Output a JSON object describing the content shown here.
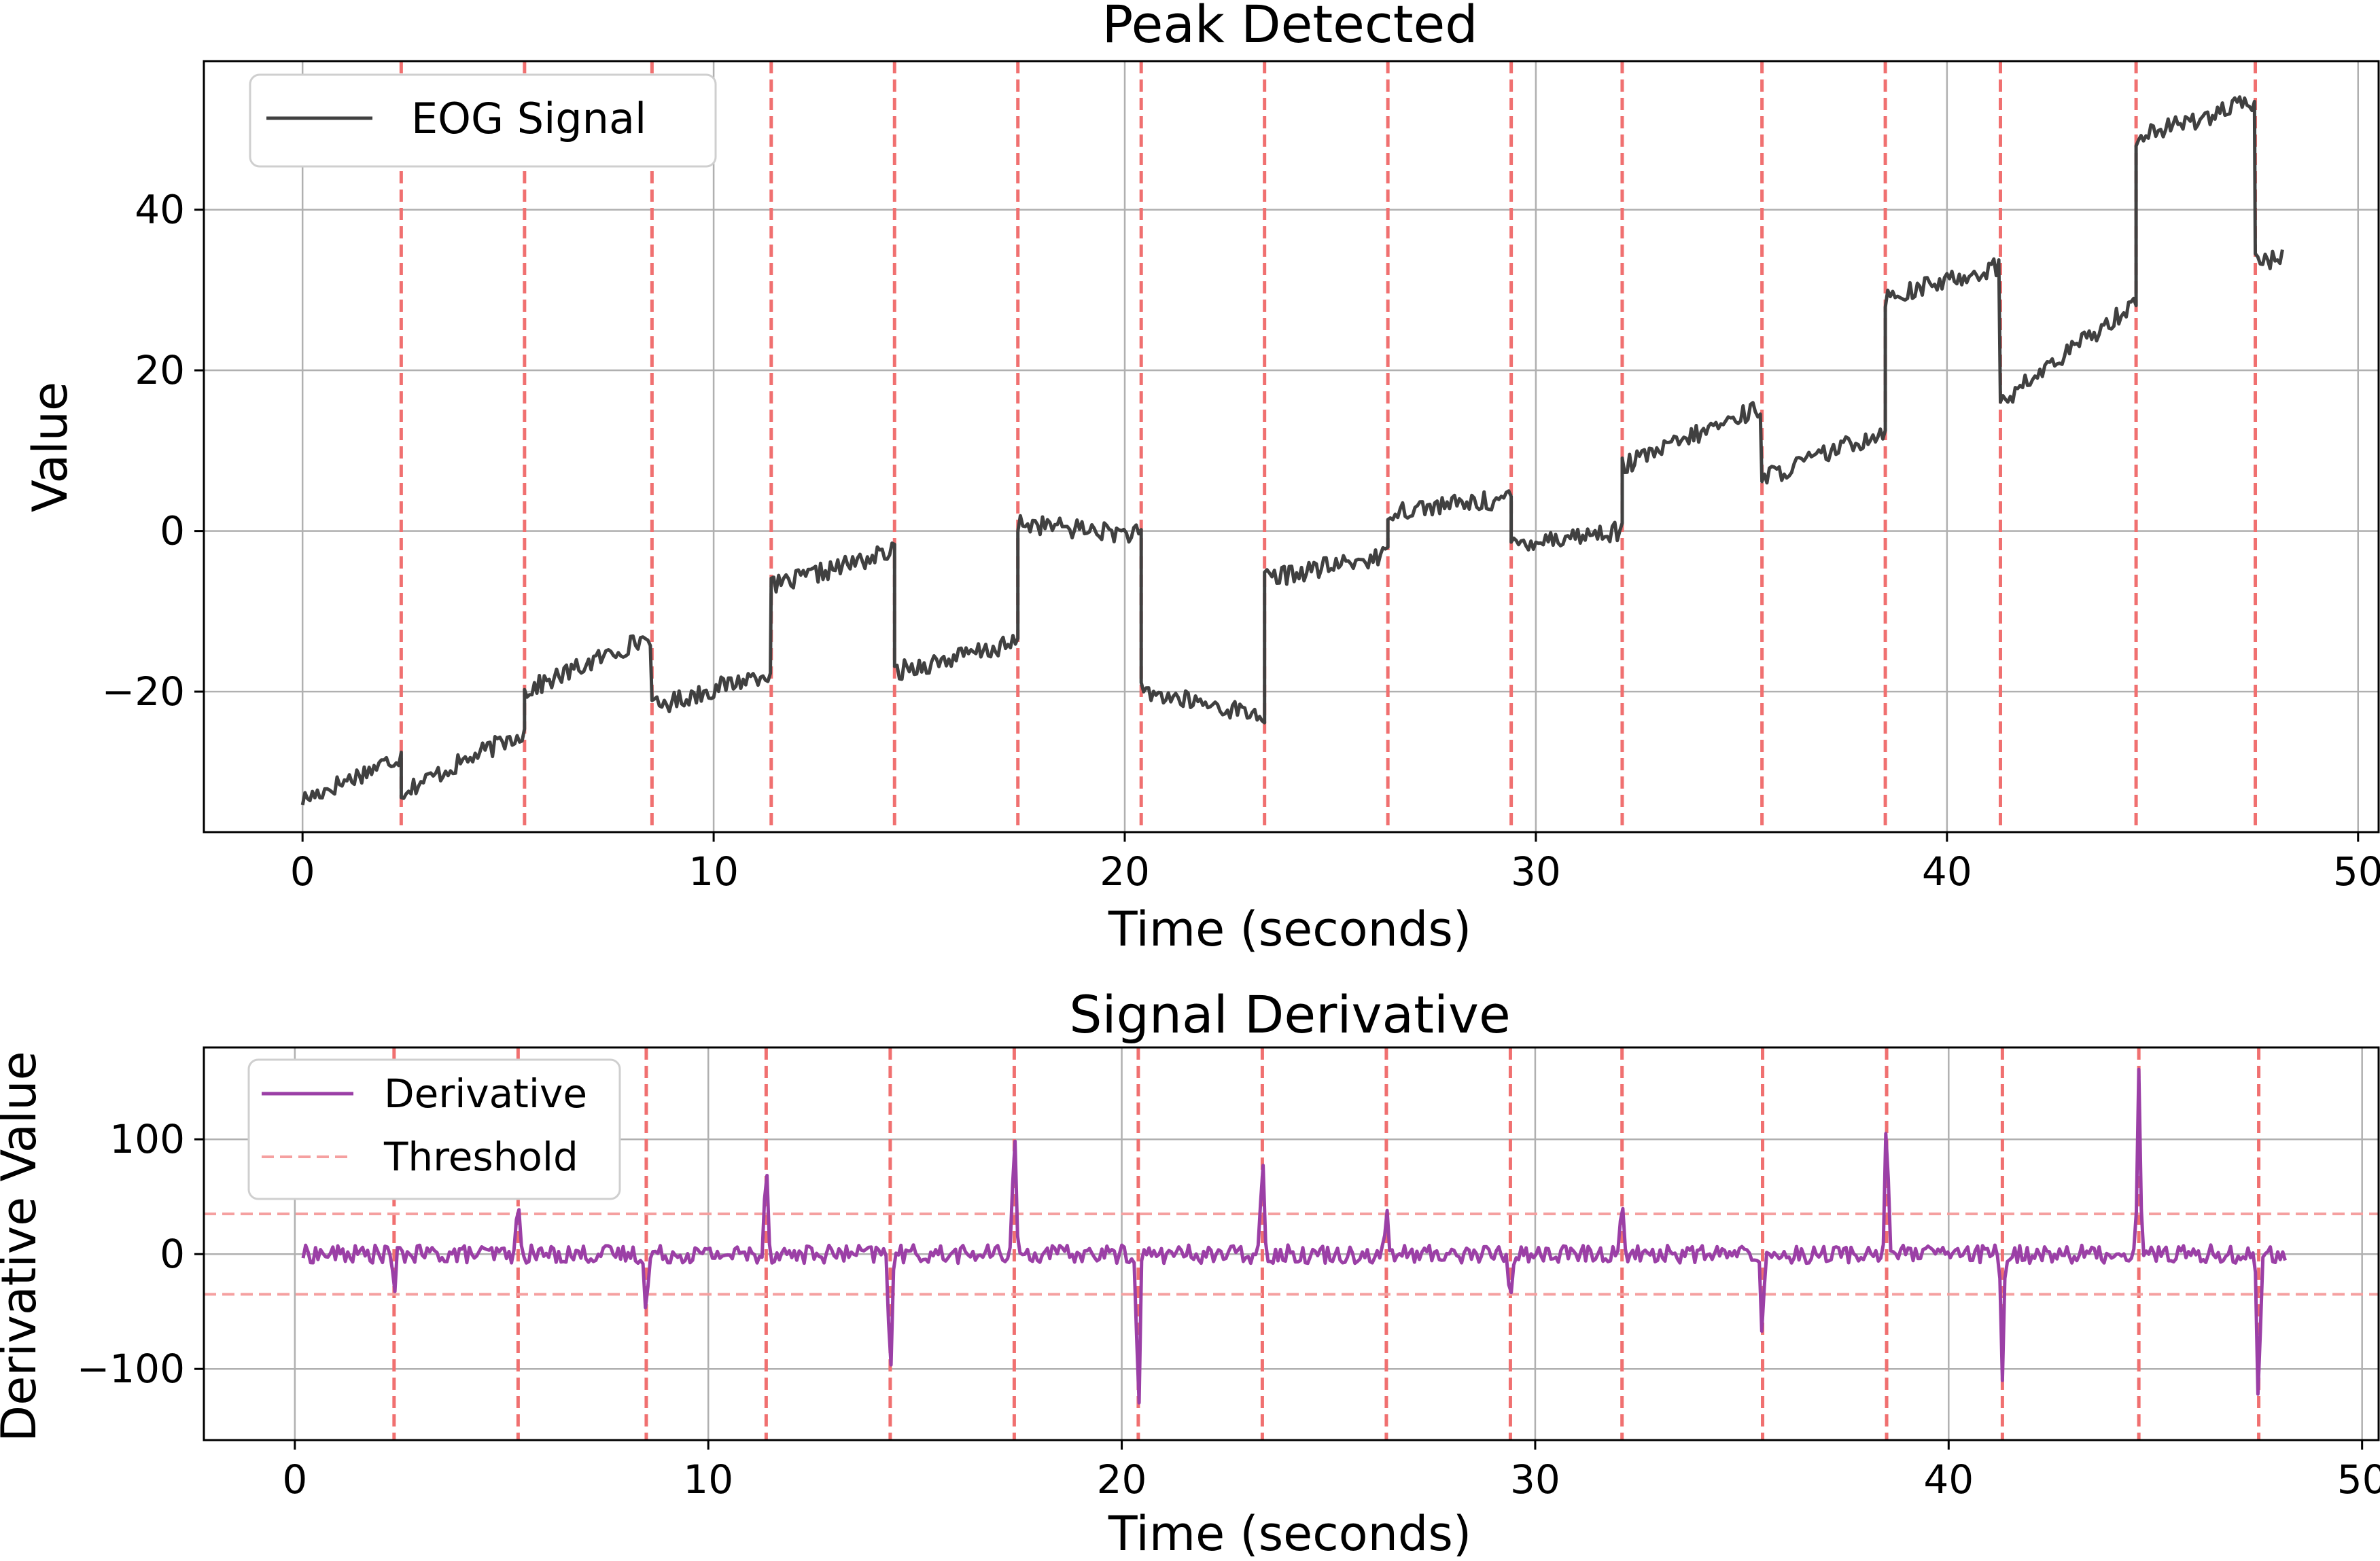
{
  "chart_data": [
    {
      "type": "line",
      "title": "Peak Detected",
      "xlabel": "Time (seconds)",
      "ylabel": "Value",
      "xlim": [
        -2.4,
        50.5
      ],
      "ylim": [
        -37.5,
        58.5
      ],
      "xticks": [
        0,
        10,
        20,
        30,
        40,
        50
      ],
      "yticks": [
        -20,
        0,
        20,
        40
      ],
      "ytick_labels": [
        "−20",
        "0",
        "20",
        "40"
      ],
      "grid": true,
      "legend": {
        "placement": "top-left",
        "entries": [
          "EOG Signal"
        ]
      },
      "series": [
        {
          "name": "EOG Signal",
          "color": "#404040",
          "segments": [
            {
              "t0": 0.0,
              "t1": 2.4,
              "v0": -33.5,
              "v1": -28.0
            },
            {
              "t0": 2.4,
              "t1": 5.4,
              "v0": -32.5,
              "v1": -25.0
            },
            {
              "t0": 5.4,
              "t1": 8.5,
              "v0": -20.0,
              "v1": -13.0
            },
            {
              "t0": 8.5,
              "t1": 11.4,
              "v0": -22.0,
              "v1": -17.5
            },
            {
              "t0": 11.4,
              "t1": 14.4,
              "v0": -7.0,
              "v1": -2.5
            },
            {
              "t0": 14.4,
              "t1": 17.4,
              "v0": -17.5,
              "v1": -14.0
            },
            {
              "t0": 17.4,
              "t1": 20.4,
              "v0": 1.0,
              "v1": -0.5
            },
            {
              "t0": 20.4,
              "t1": 23.4,
              "v0": -20.0,
              "v1": -23.0
            },
            {
              "t0": 23.4,
              "t1": 26.4,
              "v0": -6.0,
              "v1": -3.0
            },
            {
              "t0": 26.4,
              "t1": 29.4,
              "v0": 2.5,
              "v1": 4.0
            },
            {
              "t0": 29.4,
              "t1": 32.1,
              "v0": -1.5,
              "v1": 0.0
            },
            {
              "t0": 32.1,
              "t1": 35.5,
              "v0": 8.0,
              "v1": 15.5
            },
            {
              "t0": 35.5,
              "t1": 38.5,
              "v0": 6.5,
              "v1": 12.5
            },
            {
              "t0": 38.5,
              "t1": 41.3,
              "v0": 29.0,
              "v1": 33.0
            },
            {
              "t0": 41.3,
              "t1": 44.6,
              "v0": 16.0,
              "v1": 28.5
            },
            {
              "t0": 44.6,
              "t1": 47.5,
              "v0": 49.0,
              "v1": 53.5
            },
            {
              "t0": 47.5,
              "t1": 48.2,
              "v0": 33.5,
              "v1": 34.0
            }
          ],
          "noise_amplitude": 1.2
        }
      ],
      "vlines": [
        2.4,
        5.4,
        8.5,
        11.4,
        14.4,
        17.4,
        20.4,
        23.4,
        26.4,
        29.4,
        32.1,
        35.5,
        38.5,
        41.3,
        44.6,
        47.5
      ]
    },
    {
      "type": "line",
      "title": "Signal Derivative",
      "xlabel": "Time (seconds)",
      "ylabel": "Derivative Value",
      "xlim": [
        -2.2,
        50.4
      ],
      "ylim": [
        -162,
        180
      ],
      "xticks": [
        0,
        10,
        20,
        30,
        40,
        50
      ],
      "yticks": [
        -100,
        0,
        100
      ],
      "ytick_labels": [
        "−100",
        "0",
        "100"
      ],
      "grid": true,
      "legend": {
        "placement": "top-left",
        "entries": [
          "Derivative",
          "Threshold"
        ]
      },
      "series": [
        {
          "name": "Derivative",
          "color": "#9b3fa6",
          "t_range": [
            0.2,
            48.2
          ],
          "noise_amplitude": 8,
          "spikes": [
            {
              "t": 2.4,
              "v": -32
            },
            {
              "t": 5.4,
              "v": 45
            },
            {
              "t": 8.5,
              "v": -58
            },
            {
              "t": 11.4,
              "v": 88
            },
            {
              "t": 14.4,
              "v": -108
            },
            {
              "t": 17.4,
              "v": 123
            },
            {
              "t": 20.4,
              "v": -145
            },
            {
              "t": 23.4,
              "v": 100
            },
            {
              "t": 26.4,
              "v": 37
            },
            {
              "t": 29.4,
              "v": -42
            },
            {
              "t": 32.1,
              "v": 52
            },
            {
              "t": 35.5,
              "v": -70
            },
            {
              "t": 38.5,
              "v": 128
            },
            {
              "t": 41.3,
              "v": -115
            },
            {
              "t": 44.6,
              "v": 165
            },
            {
              "t": 47.5,
              "v": -140
            }
          ]
        },
        {
          "name": "Threshold",
          "color": "#f5a0a0",
          "values": [
            35,
            -35
          ]
        }
      ],
      "vlines": [
        2.4,
        5.4,
        8.5,
        11.4,
        14.4,
        17.4,
        20.4,
        23.4,
        26.4,
        29.4,
        32.1,
        35.5,
        38.5,
        41.3,
        44.6,
        47.5
      ]
    }
  ]
}
